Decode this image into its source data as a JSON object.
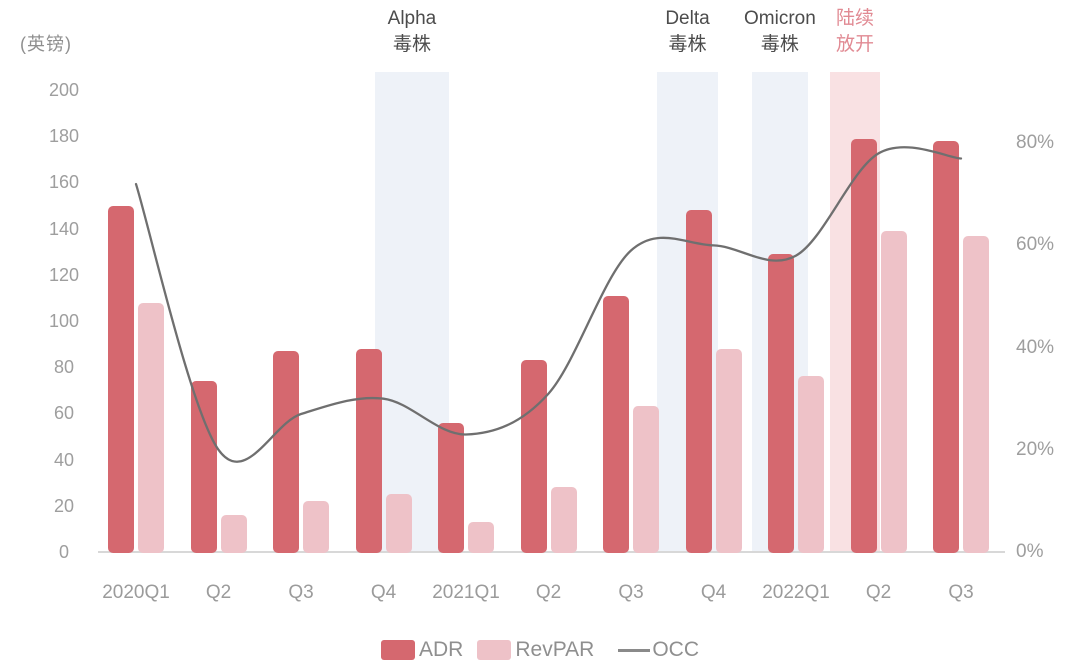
{
  "unit_label": "(英镑)",
  "chart_data": {
    "type": "bar",
    "subtype": "grouped-bar-with-line-overlay",
    "categories": [
      "2020Q1",
      "Q2",
      "Q3",
      "Q4",
      "2021Q1",
      "Q2",
      "Q3",
      "Q4",
      "2022Q1",
      "Q2",
      "Q3"
    ],
    "series": [
      {
        "name": "ADR",
        "type": "bar",
        "axis": "left",
        "unit": "英镑",
        "color": "#d5686f",
        "values": [
          150,
          74,
          87,
          88,
          56,
          83,
          111,
          148,
          129,
          179,
          178
        ]
      },
      {
        "name": "RevPAR",
        "type": "bar",
        "axis": "left",
        "unit": "英镑",
        "color": "#eec2c8",
        "values": [
          108,
          16,
          22,
          25,
          13,
          28,
          63,
          88,
          76,
          139,
          137
        ]
      },
      {
        "name": "OCC",
        "type": "line",
        "axis": "right",
        "unit": "%",
        "color": "#6f6f6f",
        "values": [
          72,
          20,
          27,
          30,
          23,
          31,
          59,
          60,
          58,
          78,
          77
        ]
      }
    ],
    "left_axis": {
      "title": "(英镑)",
      "ticks": [
        200,
        180,
        160,
        140,
        120,
        100,
        80,
        60,
        40,
        20,
        0
      ],
      "range": [
        0,
        200
      ]
    },
    "right_axis": {
      "ticks": [
        {
          "label": "80%",
          "value": 80
        },
        {
          "label": "60%",
          "value": 60
        },
        {
          "label": "40%",
          "value": 40
        },
        {
          "label": "20%",
          "value": 20
        },
        {
          "label": "0%",
          "value": 0
        }
      ],
      "range": [
        0,
        90
      ]
    },
    "grid": false,
    "legend_position": "bottom-center",
    "annotations": [
      {
        "text_lines": [
          "Alpha",
          "毒株"
        ],
        "text_color": "#4c4c4c",
        "band_color": "#eef2f8",
        "band_span_categories": [
          2.9,
          3.79
        ]
      },
      {
        "text_lines": [
          "Delta",
          "毒株"
        ],
        "text_color": "#4c4c4c",
        "band_color": "#eef2f8",
        "band_span_categories": [
          6.32,
          7.05
        ]
      },
      {
        "text_lines": [
          "Omicron",
          "毒株"
        ],
        "text_color": "#4c4c4c",
        "band_color": "#eef2f8",
        "band_span_categories": [
          7.47,
          8.14
        ]
      },
      {
        "text_lines": [
          "陆续",
          "放开"
        ],
        "text_color": "#e18a93",
        "band_color": "#f9e1e3",
        "band_span_categories": [
          8.41,
          9.02
        ]
      }
    ]
  }
}
